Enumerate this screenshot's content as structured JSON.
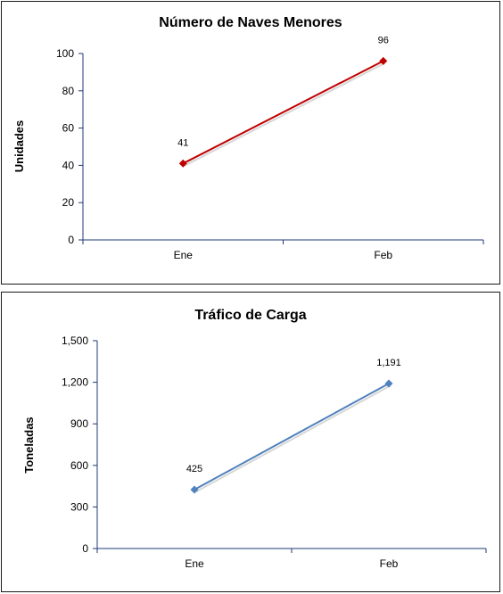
{
  "chart_data": [
    {
      "type": "line",
      "title": "Número de Naves Menores",
      "xlabel": "",
      "ylabel": "Unidades",
      "categories": [
        "Ene",
        "Feb"
      ],
      "series": [
        {
          "values": [
            41,
            96
          ],
          "color": "#c00000",
          "data_labels": [
            "41",
            "96"
          ]
        }
      ],
      "ylim": [
        0,
        100
      ],
      "yticks": [
        0,
        20,
        40,
        60,
        80,
        100
      ],
      "ytick_labels": [
        "0",
        "20",
        "40",
        "60",
        "80",
        "100"
      ],
      "grid": false,
      "legend": "none",
      "axis_color": "#1f3a7a"
    },
    {
      "type": "line",
      "title": "Tráfico de Carga",
      "xlabel": "",
      "ylabel": "Toneladas",
      "categories": [
        "Ene",
        "Feb"
      ],
      "series": [
        {
          "values": [
            425,
            1191
          ],
          "color": "#4f81bd",
          "data_labels": [
            "425",
            "1,191"
          ]
        }
      ],
      "ylim": [
        0,
        1500
      ],
      "yticks": [
        0,
        300,
        600,
        900,
        1200,
        1500
      ],
      "ytick_labels": [
        "0",
        "300",
        "600",
        "900",
        "1,200",
        "1,500"
      ],
      "grid": false,
      "legend": "none",
      "axis_color": "#1f3a7a"
    }
  ]
}
